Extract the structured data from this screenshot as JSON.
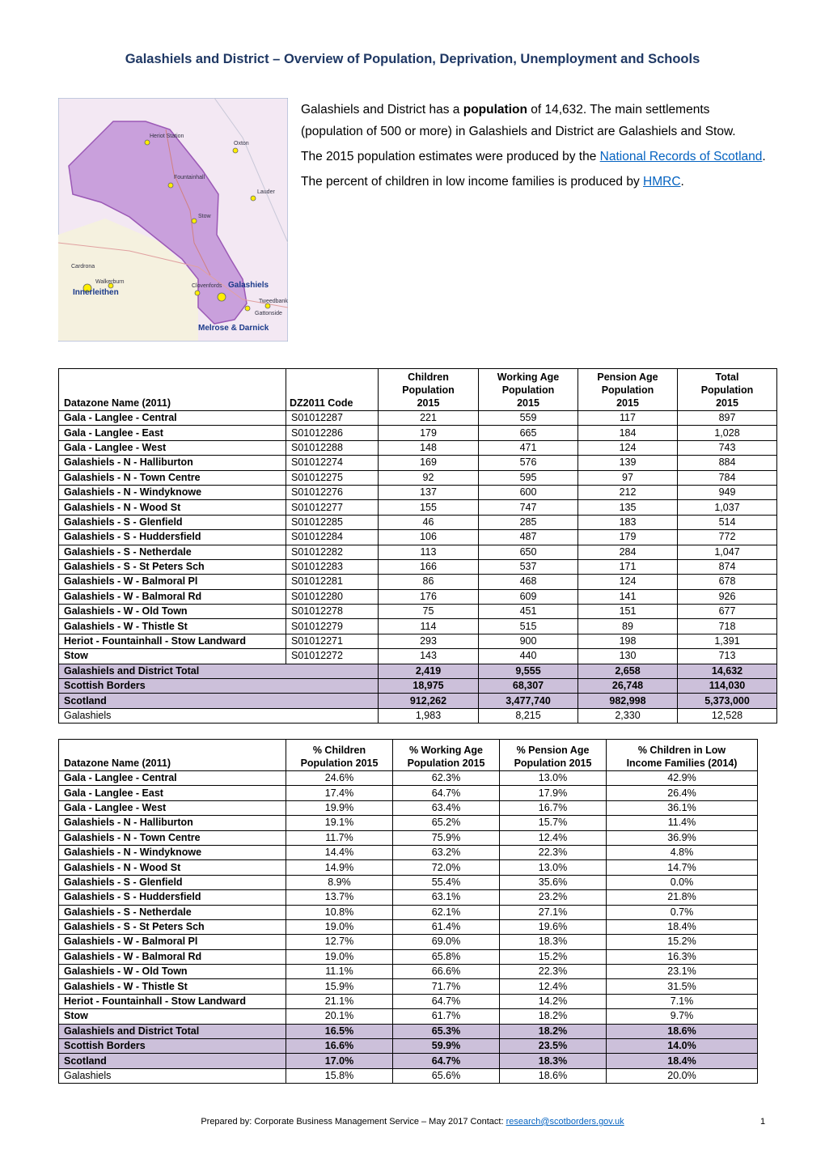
{
  "title": "Galashiels and District – Overview of Population, Deprivation, Unemployment and Schools",
  "intro": [
    [
      "Galashiels and District has a ",
      "population",
      " of 14,632. The main settlements (population of 500 or more) in Galashiels and District are Galashiels and Stow."
    ],
    [
      "The 2015 population estimates were produced by the ",
      "National Records of Scotland",
      "."
    ],
    [
      "The percent of children in low income families is produced by ",
      "HMRC",
      "."
    ]
  ],
  "map": {
    "labels": [
      "Heriot Station",
      "Oxton",
      "Fountainhall",
      "Lauder",
      "Stow",
      "Cardrona",
      "Walkerburn",
      "Innerleithen",
      "Clovenfords",
      "Galashiels",
      "Tweedbank",
      "Gattonside",
      "Melrose & Darnick"
    ]
  },
  "table1": {
    "headers": [
      [
        "Datazone Name (2011)"
      ],
      [
        "DZ2011 Code"
      ],
      [
        "Children",
        "Population",
        "2015"
      ],
      [
        "Working Age",
        "Population",
        "2015"
      ],
      [
        "Pension Age",
        "Population",
        "2015"
      ],
      [
        "Total",
        "Population",
        "2015"
      ]
    ],
    "rows": [
      [
        "Gala - Langlee - Central",
        "S01012287",
        "221",
        "559",
        "117",
        "897"
      ],
      [
        "Gala - Langlee - East",
        "S01012286",
        "179",
        "665",
        "184",
        "1,028"
      ],
      [
        "Gala - Langlee - West",
        "S01012288",
        "148",
        "471",
        "124",
        "743"
      ],
      [
        "Galashiels - N - Halliburton",
        "S01012274",
        "169",
        "576",
        "139",
        "884"
      ],
      [
        "Galashiels - N - Town Centre",
        "S01012275",
        "92",
        "595",
        "97",
        "784"
      ],
      [
        "Galashiels - N - Windyknowe",
        "S01012276",
        "137",
        "600",
        "212",
        "949"
      ],
      [
        "Galashiels - N - Wood St",
        "S01012277",
        "155",
        "747",
        "135",
        "1,037"
      ],
      [
        "Galashiels - S - Glenfield",
        "S01012285",
        "46",
        "285",
        "183",
        "514"
      ],
      [
        "Galashiels - S - Huddersfield",
        "S01012284",
        "106",
        "487",
        "179",
        "772"
      ],
      [
        "Galashiels - S - Netherdale",
        "S01012282",
        "113",
        "650",
        "284",
        "1,047"
      ],
      [
        "Galashiels - S - St Peters Sch",
        "S01012283",
        "166",
        "537",
        "171",
        "874"
      ],
      [
        "Galashiels - W - Balmoral Pl",
        "S01012281",
        "86",
        "468",
        "124",
        "678"
      ],
      [
        "Galashiels - W - Balmoral Rd",
        "S01012280",
        "176",
        "609",
        "141",
        "926"
      ],
      [
        "Galashiels - W - Old Town",
        "S01012278",
        "75",
        "451",
        "151",
        "677"
      ],
      [
        "Galashiels - W - Thistle St",
        "S01012279",
        "114",
        "515",
        "89",
        "718"
      ],
      [
        "Heriot - Fountainhall - Stow Landward",
        "S01012271",
        "293",
        "900",
        "198",
        "1,391"
      ],
      [
        "Stow",
        "S01012272",
        "143",
        "440",
        "130",
        "713"
      ]
    ],
    "summary_rows": [
      [
        "Galashiels and District Total",
        "2,419",
        "9,555",
        "2,658",
        "14,632"
      ],
      [
        "Scottish Borders",
        "18,975",
        "68,307",
        "26,748",
        "114,030"
      ],
      [
        "Scotland",
        "912,262",
        "3,477,740",
        "982,998",
        "5,373,000"
      ]
    ],
    "comparison_row": [
      "Galashiels",
      "1,983",
      "8,215",
      "2,330",
      "12,528"
    ]
  },
  "table2": {
    "headers": [
      [
        "Datazone Name (2011)"
      ],
      [
        "% Children",
        "Population 2015"
      ],
      [
        "% Working Age",
        "Population 2015"
      ],
      [
        "% Pension Age",
        "Population 2015"
      ],
      [
        "% Children in Low",
        "Income Families (2014)"
      ]
    ],
    "rows": [
      [
        "Gala - Langlee - Central",
        "24.6%",
        "62.3%",
        "13.0%",
        "42.9%"
      ],
      [
        "Gala - Langlee - East",
        "17.4%",
        "64.7%",
        "17.9%",
        "26.4%"
      ],
      [
        "Gala - Langlee - West",
        "19.9%",
        "63.4%",
        "16.7%",
        "36.1%"
      ],
      [
        "Galashiels - N - Halliburton",
        "19.1%",
        "65.2%",
        "15.7%",
        "11.4%"
      ],
      [
        "Galashiels - N - Town Centre",
        "11.7%",
        "75.9%",
        "12.4%",
        "36.9%"
      ],
      [
        "Galashiels - N - Windyknowe",
        "14.4%",
        "63.2%",
        "22.3%",
        "4.8%"
      ],
      [
        "Galashiels - N - Wood St",
        "14.9%",
        "72.0%",
        "13.0%",
        "14.7%"
      ],
      [
        "Galashiels - S - Glenfield",
        "8.9%",
        "55.4%",
        "35.6%",
        "0.0%"
      ],
      [
        "Galashiels - S - Huddersfield",
        "13.7%",
        "63.1%",
        "23.2%",
        "21.8%"
      ],
      [
        "Galashiels - S - Netherdale",
        "10.8%",
        "62.1%",
        "27.1%",
        "0.7%"
      ],
      [
        "Galashiels - S - St Peters Sch",
        "19.0%",
        "61.4%",
        "19.6%",
        "18.4%"
      ],
      [
        "Galashiels - W - Balmoral Pl",
        "12.7%",
        "69.0%",
        "18.3%",
        "15.2%"
      ],
      [
        "Galashiels - W - Balmoral Rd",
        "19.0%",
        "65.8%",
        "15.2%",
        "16.3%"
      ],
      [
        "Galashiels - W - Old Town",
        "11.1%",
        "66.6%",
        "22.3%",
        "23.1%"
      ],
      [
        "Galashiels - W - Thistle St",
        "15.9%",
        "71.7%",
        "12.4%",
        "31.5%"
      ],
      [
        "Heriot - Fountainhall - Stow Landward",
        "21.1%",
        "64.7%",
        "14.2%",
        "7.1%"
      ],
      [
        "Stow",
        "20.1%",
        "61.7%",
        "18.2%",
        "9.7%"
      ]
    ],
    "summary_rows": [
      [
        "Galashiels and District Total",
        "16.5%",
        "65.3%",
        "18.2%",
        "18.6%"
      ],
      [
        "Scottish Borders",
        "16.6%",
        "59.9%",
        "23.5%",
        "14.0%"
      ],
      [
        "Scotland",
        "17.0%",
        "64.7%",
        "18.3%",
        "18.4%"
      ]
    ],
    "comparison_row": [
      "Galashiels",
      "15.8%",
      "65.6%",
      "18.6%",
      "20.0%"
    ]
  },
  "footer": {
    "text": "Prepared by: Corporate Business Management Service – May 2017 Contact: ",
    "email": "research@scotborders.gov.uk",
    "page": "1"
  }
}
